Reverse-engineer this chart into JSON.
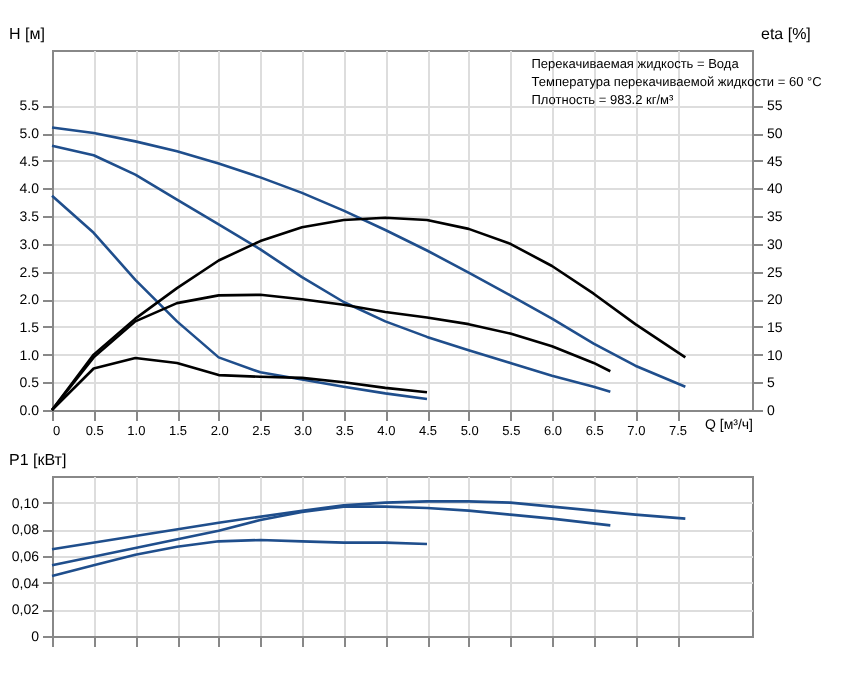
{
  "chart_data": [
    {
      "type": "line",
      "xlabel": "Q [м³/ч]",
      "ylabel": "H [м]",
      "y2label": "eta [%]",
      "annotations": [
        "Перекачиваемая жидкость = Вода",
        "Температура перекачиваемой жидкости = 60 °C",
        "Плотность = 983.2 кг/м³"
      ],
      "xlim": [
        0,
        8.4
      ],
      "xticks": [
        0,
        {
          "value": 0.5,
          "label": "0.5"
        },
        {
          "value": 1,
          "label": "1.0"
        },
        {
          "value": 1.5,
          "label": "1.5"
        },
        {
          "value": 2,
          "label": "2.0"
        },
        {
          "value": 2.5,
          "label": "2.5"
        },
        {
          "value": 3,
          "label": "3.0"
        },
        {
          "value": 3.5,
          "label": "3.5"
        },
        {
          "value": 4,
          "label": "4.0"
        },
        {
          "value": 4.5,
          "label": "4.5"
        },
        {
          "value": 5,
          "label": "5.0"
        },
        {
          "value": 5.5,
          "label": "5.5"
        },
        {
          "value": 6,
          "label": "6.0"
        },
        {
          "value": 6.5,
          "label": "6.5"
        },
        {
          "value": 7,
          "label": "7.0"
        },
        {
          "value": 7.5,
          "label": "7.5"
        }
      ],
      "ylim": [
        0,
        6.5
      ],
      "yticks": [
        {
          "value": 0,
          "label": "0.0"
        },
        0.5,
        {
          "value": 1,
          "label": "1.0"
        },
        1.5,
        {
          "value": 2,
          "label": "2.0"
        },
        2.5,
        {
          "value": 3,
          "label": "3.0"
        },
        3.5,
        {
          "value": 4,
          "label": "4.0"
        },
        4.5,
        {
          "value": 5,
          "label": "5.0"
        },
        5.5
      ],
      "y2lim": [
        0,
        65
      ],
      "y2ticks": [
        0,
        5,
        10,
        15,
        20,
        25,
        30,
        35,
        40,
        45,
        50,
        55
      ],
      "grid": true,
      "legend": false,
      "marker": "none",
      "line_style": "solid",
      "series": [
        {
          "color": "#1f4e8c",
          "x": [
            0,
            0.5,
            1,
            1.5,
            2,
            2.5,
            3,
            3.5,
            4,
            4.5,
            5,
            5.5,
            6,
            6.5,
            7,
            7.6
          ],
          "values": [
            5.1,
            5.0,
            4.85,
            4.67,
            4.45,
            4.2,
            3.92,
            3.6,
            3.25,
            2.88,
            2.48,
            2.07,
            1.65,
            1.2,
            0.8,
            0.42
          ]
        },
        {
          "color": "#1f4e8c",
          "x": [
            0,
            0.5,
            1,
            1.5,
            2,
            2.5,
            3,
            3.5,
            4,
            4.5,
            5,
            5.5,
            6,
            6.5,
            6.7
          ],
          "values": [
            4.77,
            4.6,
            4.25,
            3.8,
            3.35,
            2.9,
            2.4,
            1.95,
            1.6,
            1.32,
            1.08,
            0.85,
            0.62,
            0.42,
            0.33
          ]
        },
        {
          "color": "#1f4e8c",
          "x": [
            0,
            0.5,
            1,
            1.5,
            2,
            2.5,
            3,
            3.5,
            4,
            4.5
          ],
          "values": [
            3.87,
            3.2,
            2.35,
            1.6,
            0.95,
            0.68,
            0.55,
            0.42,
            0.3,
            0.2
          ]
        },
        {
          "color": "#000000",
          "axis": "y2",
          "x": [
            0,
            0.5,
            1,
            1.5,
            2,
            2.5,
            3,
            3.5,
            4,
            4.5,
            5,
            5.5,
            6,
            6.5,
            7,
            7.6
          ],
          "values": [
            0,
            10,
            16.5,
            22,
            27,
            30.5,
            33,
            34.3,
            34.7,
            34.3,
            32.7,
            30,
            26,
            21,
            15.5,
            9.5
          ]
        },
        {
          "color": "#000000",
          "axis": "y2",
          "x": [
            0,
            0.5,
            1,
            1.5,
            2,
            2.5,
            3,
            3.5,
            4,
            4.5,
            5,
            5.5,
            6,
            6.5,
            6.7
          ],
          "values": [
            0,
            9.5,
            16,
            19.3,
            20.7,
            20.8,
            20,
            19,
            17.7,
            16.7,
            15.5,
            13.8,
            11.5,
            8.5,
            7
          ]
        },
        {
          "color": "#000000",
          "axis": "y2",
          "x": [
            0,
            0.5,
            1,
            1.5,
            2,
            2.5,
            3,
            3.5,
            4,
            4.5
          ],
          "values": [
            0,
            7.5,
            9.4,
            8.5,
            6.3,
            6,
            5.8,
            5,
            4,
            3.2
          ]
        }
      ]
    },
    {
      "type": "line",
      "ylabel": "P1 [кВт]",
      "tick_labels": "y",
      "xlim": [
        0,
        8.4
      ],
      "xticks": [
        0,
        0.5,
        1,
        1.5,
        2,
        2.5,
        3,
        3.5,
        4,
        4.5,
        5,
        5.5,
        6,
        6.5,
        7,
        7.5
      ],
      "ylim": [
        0,
        0.12
      ],
      "yticks": [
        0,
        {
          "value": 0.02,
          "label": "0,02"
        },
        {
          "value": 0.04,
          "label": "0,04"
        },
        {
          "value": 0.06,
          "label": "0,06"
        },
        {
          "value": 0.08,
          "label": "0,08"
        },
        {
          "value": 0.1,
          "label": "0,10"
        }
      ],
      "grid": true,
      "legend": false,
      "marker": "none",
      "line_style": "solid",
      "series": [
        {
          "color": "#1f4e8c",
          "x": [
            0,
            1,
            2,
            3,
            3.5,
            4,
            4.5,
            5,
            5.5,
            6,
            6.5,
            7,
            7.6
          ],
          "values": [
            0.065,
            0.075,
            0.085,
            0.094,
            0.098,
            0.1,
            0.101,
            0.101,
            0.1,
            0.097,
            0.094,
            0.091,
            0.088
          ]
        },
        {
          "color": "#1f4e8c",
          "x": [
            0,
            1,
            2,
            2.5,
            3,
            3.5,
            4,
            4.5,
            5,
            5.5,
            6,
            6.7
          ],
          "values": [
            0.053,
            0.066,
            0.079,
            0.087,
            0.093,
            0.097,
            0.097,
            0.096,
            0.094,
            0.091,
            0.088,
            0.083
          ]
        },
        {
          "color": "#1f4e8c",
          "x": [
            0,
            0.5,
            1,
            1.5,
            2,
            2.5,
            3,
            3.5,
            4,
            4.5
          ],
          "values": [
            0.045,
            0.053,
            0.061,
            0.067,
            0.071,
            0.072,
            0.071,
            0.07,
            0.07,
            0.069
          ]
        }
      ]
    }
  ]
}
